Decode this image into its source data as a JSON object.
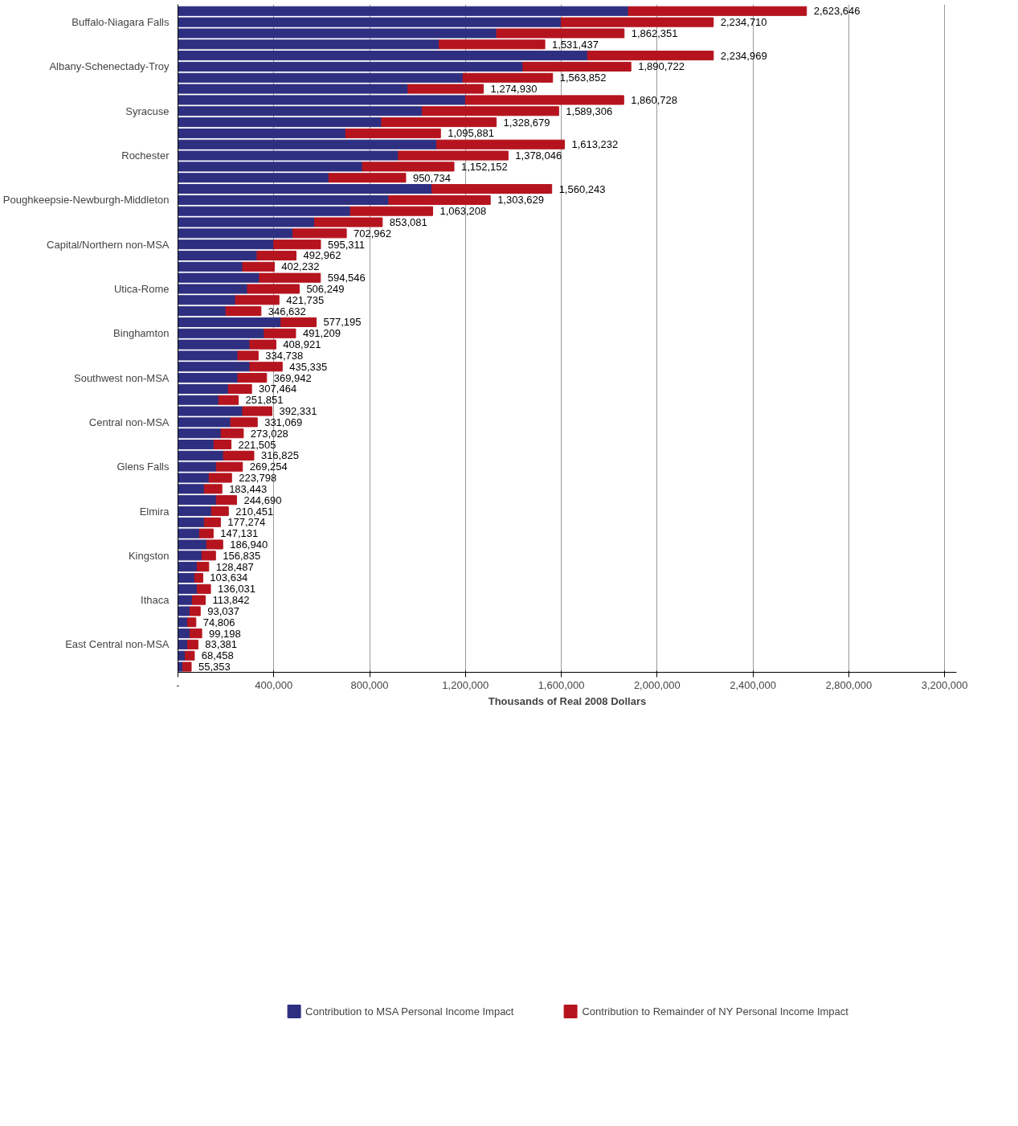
{
  "chart_data": {
    "type": "bar",
    "orientation": "horizontal",
    "stacked": true,
    "xlabel": "Thousands of Real 2008 Dollars",
    "categories": [
      null,
      "Buffalo-Niagara Falls",
      null,
      null,
      null,
      "Albany-Schenectady-Troy",
      null,
      null,
      null,
      "Syracuse",
      null,
      null,
      null,
      "Rochester",
      null,
      null,
      null,
      "Poughkeepsie-Newburgh-Middleton",
      null,
      null,
      null,
      "Capital/Northern non-MSA",
      null,
      null,
      null,
      "Utica-Rome",
      null,
      null,
      null,
      "Binghamton",
      null,
      null,
      null,
      "Southwest non-MSA",
      null,
      null,
      null,
      "Central non-MSA",
      null,
      null,
      null,
      "Glens Falls",
      null,
      null,
      null,
      "Elmira",
      null,
      null,
      null,
      "Kingston",
      null,
      null,
      null,
      "Ithaca",
      null,
      null,
      null,
      "East Central non-MSA",
      null,
      null
    ],
    "series": [
      {
        "name": "Contribution to MSA Personal Income Impact",
        "color": "#2e2f80",
        "values": [
          1880000,
          1600000,
          1330000,
          1090000,
          1710000,
          1440000,
          1190000,
          960000,
          1200000,
          1020000,
          850000,
          700000,
          1080000,
          920000,
          770000,
          630000,
          1060000,
          880000,
          720000,
          570000,
          480000,
          400000,
          330000,
          270000,
          340000,
          290000,
          240000,
          200000,
          430000,
          360000,
          300000,
          250000,
          300000,
          250000,
          210000,
          170000,
          270000,
          220000,
          180000,
          150000,
          190000,
          160000,
          130000,
          110000,
          160000,
          140000,
          110000,
          90000,
          120000,
          100000,
          80000,
          70000,
          80000,
          60000,
          50000,
          40000,
          50000,
          40000,
          30000,
          20000
        ]
      },
      {
        "name": "Contribution to Remainder of NY Personal Income Impact",
        "color": "#b5141e",
        "values": [
          743646,
          634710,
          532351,
          441437,
          524969,
          450722,
          373852,
          314930,
          660728,
          569306,
          478679,
          395881,
          533232,
          458046,
          382152,
          320734,
          500243,
          423629,
          343208,
          283081,
          222962,
          195311,
          162962,
          132232,
          254546,
          216249,
          181735,
          146632,
          147195,
          131209,
          108921,
          84738,
          135335,
          119942,
          97464,
          81851,
          122331,
          111069,
          93028,
          71505,
          126825,
          109254,
          93798,
          73443,
          84690,
          70451,
          67274,
          57131,
          66940,
          56835,
          48487,
          33634,
          56031,
          53842,
          43037,
          34806,
          49198,
          43381,
          38458,
          35353
        ]
      }
    ],
    "totals": [
      "2,623,646",
      "2,234,710",
      "1,862,351",
      "1,531,437",
      "2,234,969",
      "1,890,722",
      "1,563,852",
      "1,274,930",
      "1,860,728",
      "1,589,306",
      "1,328,679",
      "1,095,881",
      "1,613,232",
      "1,378,046",
      "1,152,152",
      "950,734",
      "1,560,243",
      "1,303,629",
      "1,063,208",
      "853,081",
      "702,962",
      "595,311",
      "492,962",
      "402,232",
      "594,546",
      "506,249",
      "421,735",
      "346,632",
      "577,195",
      "491,209",
      "408,921",
      "334,738",
      "435,335",
      "369,942",
      "307,464",
      "251,851",
      "392,331",
      "331,069",
      "273,028",
      "221,505",
      "316,825",
      "269,254",
      "223,798",
      "183,443",
      "244,690",
      "210,451",
      "177,274",
      "147,131",
      "186,940",
      "156,835",
      "128,487",
      "103,634",
      "136,031",
      "113,842",
      "93,037",
      "74,806",
      "99,198",
      "83,381",
      "68,458",
      "55,353"
    ],
    "xlim": [
      0,
      3250000
    ],
    "xticks": [
      {
        "value": 0,
        "label": "-"
      },
      {
        "value": 400000,
        "label": "400,000"
      },
      {
        "value": 800000,
        "label": "800,000"
      },
      {
        "value": 1200000,
        "label": "1,200,000"
      },
      {
        "value": 1600000,
        "label": "1,600,000"
      },
      {
        "value": 2000000,
        "label": "2,000,000"
      },
      {
        "value": 2400000,
        "label": "2,400,000"
      },
      {
        "value": 2800000,
        "label": "2,800,000"
      },
      {
        "value": 3200000,
        "label": "3,200,000"
      }
    ],
    "grid": "x",
    "legend": "bottom"
  }
}
